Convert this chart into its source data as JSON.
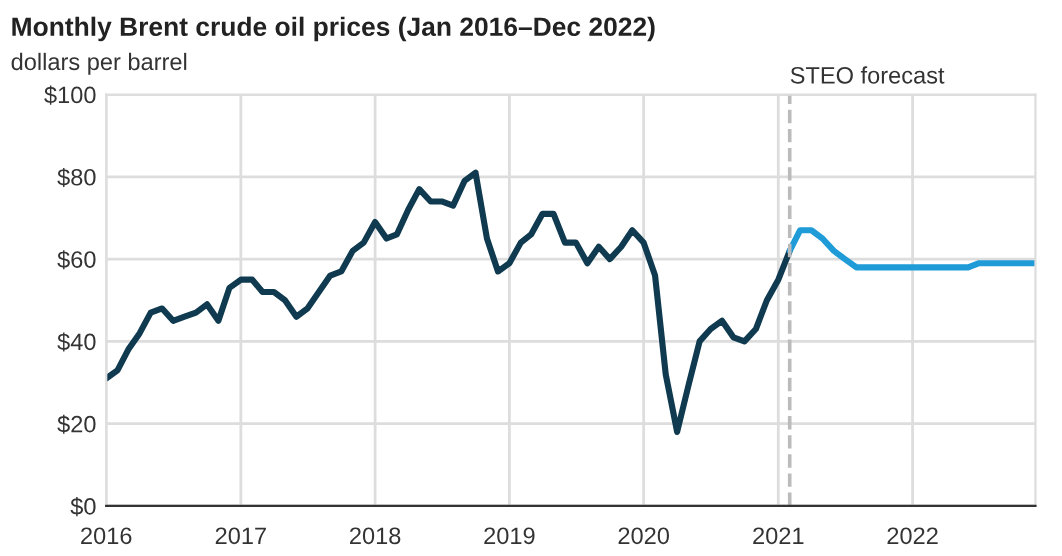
{
  "chart_data": {
    "type": "line",
    "title": "Monthly Brent crude oil prices (Jan 2016–Dec 2022)",
    "subtitle": "dollars per barrel",
    "series": [
      {
        "color": "#0f3a4f",
        "x": [
          "2016-01",
          "2016-02",
          "2016-03",
          "2016-04",
          "2016-05",
          "2016-06",
          "2016-07",
          "2016-08",
          "2016-09",
          "2016-10",
          "2016-11",
          "2016-12",
          "2017-01",
          "2017-02",
          "2017-03",
          "2017-04",
          "2017-05",
          "2017-06",
          "2017-07",
          "2017-08",
          "2017-09",
          "2017-10",
          "2017-11",
          "2017-12",
          "2018-01",
          "2018-02",
          "2018-03",
          "2018-04",
          "2018-05",
          "2018-06",
          "2018-07",
          "2018-08",
          "2018-09",
          "2018-10",
          "2018-11",
          "2018-12",
          "2019-01",
          "2019-02",
          "2019-03",
          "2019-04",
          "2019-05",
          "2019-06",
          "2019-07",
          "2019-08",
          "2019-09",
          "2019-10",
          "2019-11",
          "2019-12",
          "2020-01",
          "2020-02",
          "2020-03",
          "2020-04",
          "2020-05",
          "2020-06",
          "2020-07",
          "2020-08",
          "2020-09",
          "2020-10",
          "2020-11",
          "2020-12",
          "2021-01",
          "2021-02"
        ],
        "values": [
          31,
          33,
          38,
          42,
          47,
          48,
          45,
          46,
          47,
          49,
          45,
          53,
          55,
          55,
          52,
          52,
          50,
          46,
          48,
          52,
          56,
          57,
          62,
          64,
          69,
          65,
          66,
          72,
          77,
          74,
          74,
          73,
          79,
          81,
          65,
          57,
          59,
          64,
          66,
          71,
          71,
          64,
          64,
          59,
          63,
          60,
          63,
          67,
          64,
          56,
          32,
          18,
          29,
          40,
          43,
          45,
          41,
          40,
          43,
          50,
          55,
          62
        ]
      },
      {
        "color": "#1f9bd7",
        "x": [
          "2021-02",
          "2021-03",
          "2021-04",
          "2021-05",
          "2021-06",
          "2021-07",
          "2021-08",
          "2022-06",
          "2022-07",
          "2022-12"
        ],
        "values": [
          62,
          67,
          67,
          65,
          62,
          60,
          58,
          58,
          59,
          59
        ]
      }
    ],
    "xlim": [
      "2016-01",
      "2022-12"
    ],
    "xticks": [
      {
        "value": "2016-01",
        "label": "2016"
      },
      {
        "value": "2017-01",
        "label": "2017"
      },
      {
        "value": "2018-01",
        "label": "2018"
      },
      {
        "value": "2019-01",
        "label": "2019"
      },
      {
        "value": "2020-01",
        "label": "2020"
      },
      {
        "value": "2021-01",
        "label": "2021"
      },
      {
        "value": "2022-01",
        "label": "2022"
      }
    ],
    "ylim": [
      0,
      100
    ],
    "yticks": [
      {
        "value": 0,
        "label": "$0"
      },
      {
        "value": 20,
        "label": "$20"
      },
      {
        "value": 40,
        "label": "$40"
      },
      {
        "value": 60,
        "label": "$60"
      },
      {
        "value": 80,
        "label": "$80"
      },
      {
        "value": 100,
        "label": "$100"
      }
    ],
    "ref_lines": [
      {
        "axis": "x",
        "value": "2021-02",
        "label": "STEO forecast",
        "color": "#bbbbbb",
        "line_style": "dashed"
      }
    ],
    "grid": true,
    "legend": false,
    "marker": "none",
    "line_style": "solid"
  }
}
